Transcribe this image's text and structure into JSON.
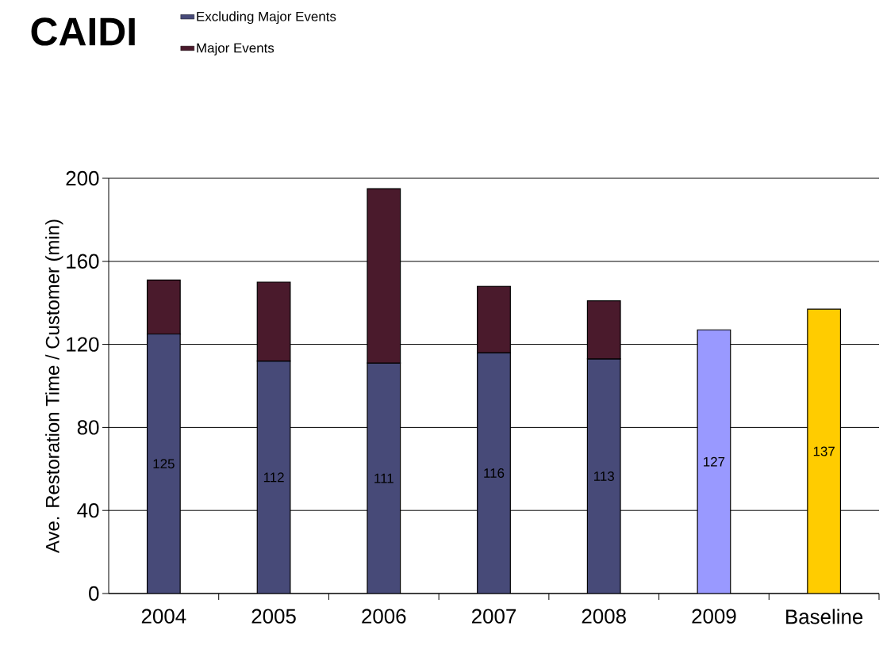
{
  "chart_data": {
    "type": "bar",
    "title": "CAIDI",
    "ylabel": "Ave. Restoration Time / Customer (min)",
    "categories": [
      "2004",
      "2005",
      "2006",
      "2007",
      "2008",
      "2009",
      "Baseline"
    ],
    "stacked": true,
    "series": [
      {
        "name": "Excluding Major Events",
        "color": "#474a78",
        "colors": [
          "#474a78",
          "#474a78",
          "#474a78",
          "#474a78",
          "#474a78",
          "#9999ff",
          "#ffcc00"
        ],
        "values": [
          125,
          112,
          111,
          116,
          113,
          127,
          137
        ],
        "value_labels": [
          "125",
          "112",
          "111",
          "116",
          "113",
          "127",
          "137"
        ]
      },
      {
        "name": "Major Events",
        "color": "#4a1a2c",
        "values": [
          26,
          38,
          84,
          32,
          28,
          null,
          null
        ]
      }
    ],
    "ylim": [
      0,
      200
    ],
    "yticks": [
      0,
      40,
      80,
      120,
      160,
      200
    ],
    "grid": "y",
    "legend": "top left"
  }
}
